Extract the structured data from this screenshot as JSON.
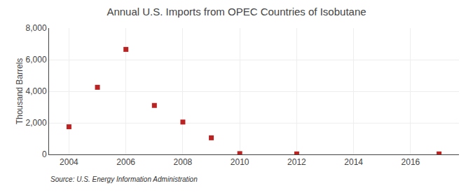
{
  "chart_data": {
    "type": "scatter",
    "title": "Annual U.S. Imports from OPEC Countries of Isobutane",
    "y_label": "Thousand Barrels",
    "annotations": [
      "Source: U.S. Energy Information Administration"
    ],
    "x": [
      2004,
      2005,
      2006,
      2007,
      2008,
      2009,
      2010,
      2012,
      2017
    ],
    "values": [
      1750,
      4250,
      6650,
      3100,
      2050,
      1050,
      50,
      30,
      30
    ],
    "color": "#bb2222",
    "marker": "square",
    "xlim": [
      2003.3,
      2017.7
    ],
    "xticks": [
      2004,
      2006,
      2008,
      2010,
      2012,
      2014,
      2016
    ],
    "ylim": [
      0,
      8000
    ],
    "yticks": [
      0,
      {
        "value": 2000,
        "label": "2,000"
      },
      {
        "value": 4000,
        "label": "4,000"
      },
      {
        "value": 6000,
        "label": "6,000"
      },
      {
        "value": 8000,
        "label": "8,000"
      }
    ],
    "grid": true
  }
}
